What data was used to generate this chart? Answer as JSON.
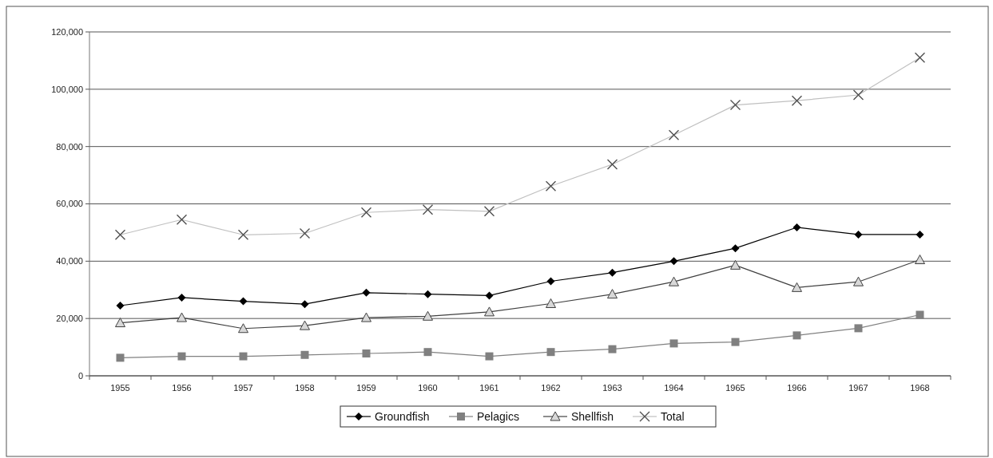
{
  "chart_data": {
    "type": "line",
    "categories": [
      "1955",
      "1956",
      "1957",
      "1958",
      "1959",
      "1960",
      "1961",
      "1962",
      "1963",
      "1964",
      "1965",
      "1966",
      "1967",
      "1968"
    ],
    "ylim": [
      0,
      120000
    ],
    "yticks": [
      {
        "value": 0,
        "label": "0"
      },
      {
        "value": 20000,
        "label": "20,000"
      },
      {
        "value": 40000,
        "label": "40,000"
      },
      {
        "value": 60000,
        "label": "60,000"
      },
      {
        "value": 80000,
        "label": "80,000"
      },
      {
        "value": 100000,
        "label": "100,000"
      },
      {
        "value": 120000,
        "label": "120,000"
      }
    ],
    "grid": "y",
    "legend": "bottom",
    "series": [
      {
        "name": "Groundfish",
        "color": "#000000",
        "marker": "diamond",
        "values": [
          24500,
          27300,
          26000,
          25000,
          29000,
          28500,
          28000,
          33000,
          36000,
          40000,
          44500,
          51800,
          49300,
          49300
        ]
      },
      {
        "name": "Pelagics",
        "color": "#808080",
        "marker": "square",
        "values": [
          6300,
          6800,
          6800,
          7300,
          7800,
          8300,
          6800,
          8300,
          9300,
          11300,
          11800,
          14100,
          16600,
          21300
        ]
      },
      {
        "name": "Shellfish",
        "color": "#404040",
        "marker": "triangle",
        "values": [
          18500,
          20300,
          16500,
          17500,
          20300,
          20800,
          22300,
          25200,
          28500,
          32800,
          38600,
          30800,
          32800,
          40500
        ]
      },
      {
        "name": "Total",
        "color": "#c0c0c0",
        "marker": "cross",
        "values": [
          49200,
          54500,
          49200,
          49700,
          57000,
          58000,
          57400,
          66200,
          73800,
          84000,
          94500,
          96000,
          98000,
          111000
        ]
      }
    ]
  }
}
